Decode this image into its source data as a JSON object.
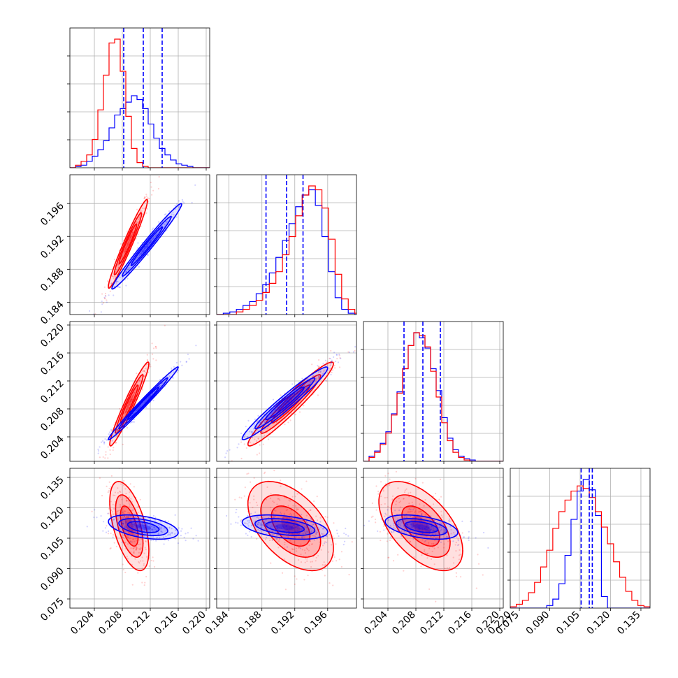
{
  "chart_data": {
    "type": "corner",
    "title": "",
    "grid": true,
    "colors": {
      "series_a": "#ff0000",
      "series_b": "#0000ff"
    },
    "params": [
      {
        "range": [
          0.2005,
          0.2205
        ],
        "ticks": [
          "0.204",
          "0.208",
          "0.212",
          "0.216",
          "0.220"
        ],
        "tick_values": [
          0.204,
          0.208,
          0.212,
          0.216,
          0.22
        ],
        "quantiles_blue": [
          0.2082,
          0.211,
          0.2137
        ],
        "hist_red": {
          "edges_start": 0.2005,
          "bin": 0.0008,
          "counts": [
            0,
            2,
            5,
            10,
            22,
            45,
            72,
            97,
            100,
            75,
            40,
            15,
            4,
            1,
            0,
            0,
            0,
            0,
            0,
            0,
            0,
            0,
            0,
            0,
            0
          ]
        },
        "hist_blue": {
          "edges_start": 0.2005,
          "bin": 0.0008,
          "counts": [
            0,
            1,
            2,
            5,
            9,
            14,
            21,
            31,
            41,
            46,
            51,
            56,
            53,
            46,
            34,
            23,
            15,
            10,
            6,
            3,
            2,
            1,
            0,
            0,
            0
          ]
        }
      },
      {
        "range": [
          0.1825,
          0.1995
        ],
        "ticks": [
          "0.184",
          "0.188",
          "0.192",
          "0.196"
        ],
        "tick_values": [
          0.184,
          0.188,
          0.192,
          0.196
        ],
        "quantiles_blue": [
          0.1885,
          0.191,
          0.193
        ],
        "hist_red": {
          "edges_start": 0.1825,
          "bin": 0.0008,
          "counts": [
            0,
            0,
            0,
            2,
            4,
            7,
            11,
            17,
            24,
            33,
            46,
            60,
            76,
            92,
            99,
            96,
            82,
            58,
            31,
            12,
            4,
            1
          ]
        },
        "hist_blue": {
          "edges_start": 0.1825,
          "bin": 0.0008,
          "counts": [
            0,
            1,
            2,
            4,
            7,
            10,
            16,
            23,
            32,
            44,
            57,
            70,
            83,
            92,
            96,
            84,
            60,
            33,
            13,
            4,
            1,
            0
          ]
        }
      },
      {
        "range": [
          0.2005,
          0.2205
        ],
        "ticks": [
          "0.204",
          "0.208",
          "0.212",
          "0.216",
          "0.220"
        ],
        "tick_values": [
          0.204,
          0.208,
          0.212,
          0.216,
          0.22
        ],
        "quantiles_blue": [
          0.2063,
          0.209,
          0.2115
        ],
        "hist_red": {
          "edges_start": 0.2005,
          "bin": 0.0008,
          "counts": [
            0,
            3,
            7,
            13,
            22,
            36,
            53,
            72,
            90,
            100,
            98,
            89,
            70,
            50,
            30,
            16,
            7,
            3,
            1,
            0,
            0,
            0,
            0,
            0,
            0
          ]
        },
        "hist_blue": {
          "edges_start": 0.2005,
          "bin": 0.0008,
          "counts": [
            0,
            4,
            8,
            14,
            23,
            37,
            54,
            72,
            90,
            100,
            96,
            88,
            72,
            55,
            34,
            18,
            9,
            4,
            2,
            1,
            0,
            0,
            0,
            0,
            0
          ]
        }
      },
      {
        "range": [
          0.0705,
          0.1395
        ],
        "ticks": [
          "0.075",
          "0.090",
          "0.105",
          "0.120",
          "0.135"
        ],
        "tick_values": [
          0.075,
          0.09,
          0.105,
          0.12,
          0.135
        ],
        "extra_tick": "0.220",
        "quantiles_blue": [
          0.1055,
          0.1095,
          0.111
        ],
        "hist_red": {
          "edges_start": 0.0705,
          "bin": 0.003,
          "counts": [
            1,
            3,
            6,
            12,
            20,
            32,
            45,
            62,
            75,
            84,
            91,
            95,
            93,
            86,
            75,
            63,
            50,
            36,
            24,
            13,
            6,
            2,
            1
          ]
        },
        "hist_blue": {
          "edges_start": 0.0705,
          "bin": 0.003,
          "counts": [
            0,
            0,
            0,
            0,
            0,
            0,
            2,
            7,
            19,
            41,
            69,
            91,
            100,
            92,
            72,
            9,
            0,
            0,
            0,
            0,
            0,
            0,
            0
          ]
        }
      }
    ],
    "pairs": [
      {
        "x": 0,
        "y": 1,
        "red": {
          "mean": [
            0.2088,
            0.1911
          ],
          "sd": [
            0.0014,
            0.0027
          ],
          "rho": 0.97
        },
        "blue": {
          "mean": [
            0.2115,
            0.1908
          ],
          "sd": [
            0.0025,
            0.0026
          ],
          "rho": 0.985
        }
      },
      {
        "x": 0,
        "y": 2,
        "red": {
          "mean": [
            0.209,
            0.2087
          ],
          "sd": [
            0.0014,
            0.003
          ],
          "rho": 0.96
        },
        "blue": {
          "mean": [
            0.211,
            0.2088
          ],
          "sd": [
            0.0025,
            0.0026
          ],
          "rho": 0.99
        }
      },
      {
        "x": 1,
        "y": 2,
        "red": {
          "mean": [
            0.1915,
            0.2087
          ],
          "sd": [
            0.0026,
            0.003
          ],
          "rho": 0.96
        },
        "blue": {
          "mean": [
            0.1908,
            0.2088
          ],
          "sd": [
            0.0026,
            0.0026
          ],
          "rho": 0.97
        }
      },
      {
        "x": 0,
        "y": 3,
        "red": {
          "mean": [
            0.209,
            0.111
          ],
          "sd": [
            0.0014,
            0.011
          ],
          "rho": -0.55
        },
        "blue": {
          "mean": [
            0.211,
            0.1105
          ],
          "sd": [
            0.0025,
            0.003
          ],
          "rho": -0.45
        }
      },
      {
        "x": 1,
        "y": 3,
        "red": {
          "mean": [
            0.1915,
            0.111
          ],
          "sd": [
            0.0026,
            0.011
          ],
          "rho": -0.5
        },
        "blue": {
          "mean": [
            0.1908,
            0.1105
          ],
          "sd": [
            0.0026,
            0.003
          ],
          "rho": -0.4
        }
      },
      {
        "x": 2,
        "y": 3,
        "red": {
          "mean": [
            0.2087,
            0.111
          ],
          "sd": [
            0.003,
            0.011
          ],
          "rho": -0.55
        },
        "blue": {
          "mean": [
            0.2088,
            0.1105
          ],
          "sd": [
            0.0026,
            0.003
          ],
          "rho": -0.45
        }
      }
    ]
  }
}
